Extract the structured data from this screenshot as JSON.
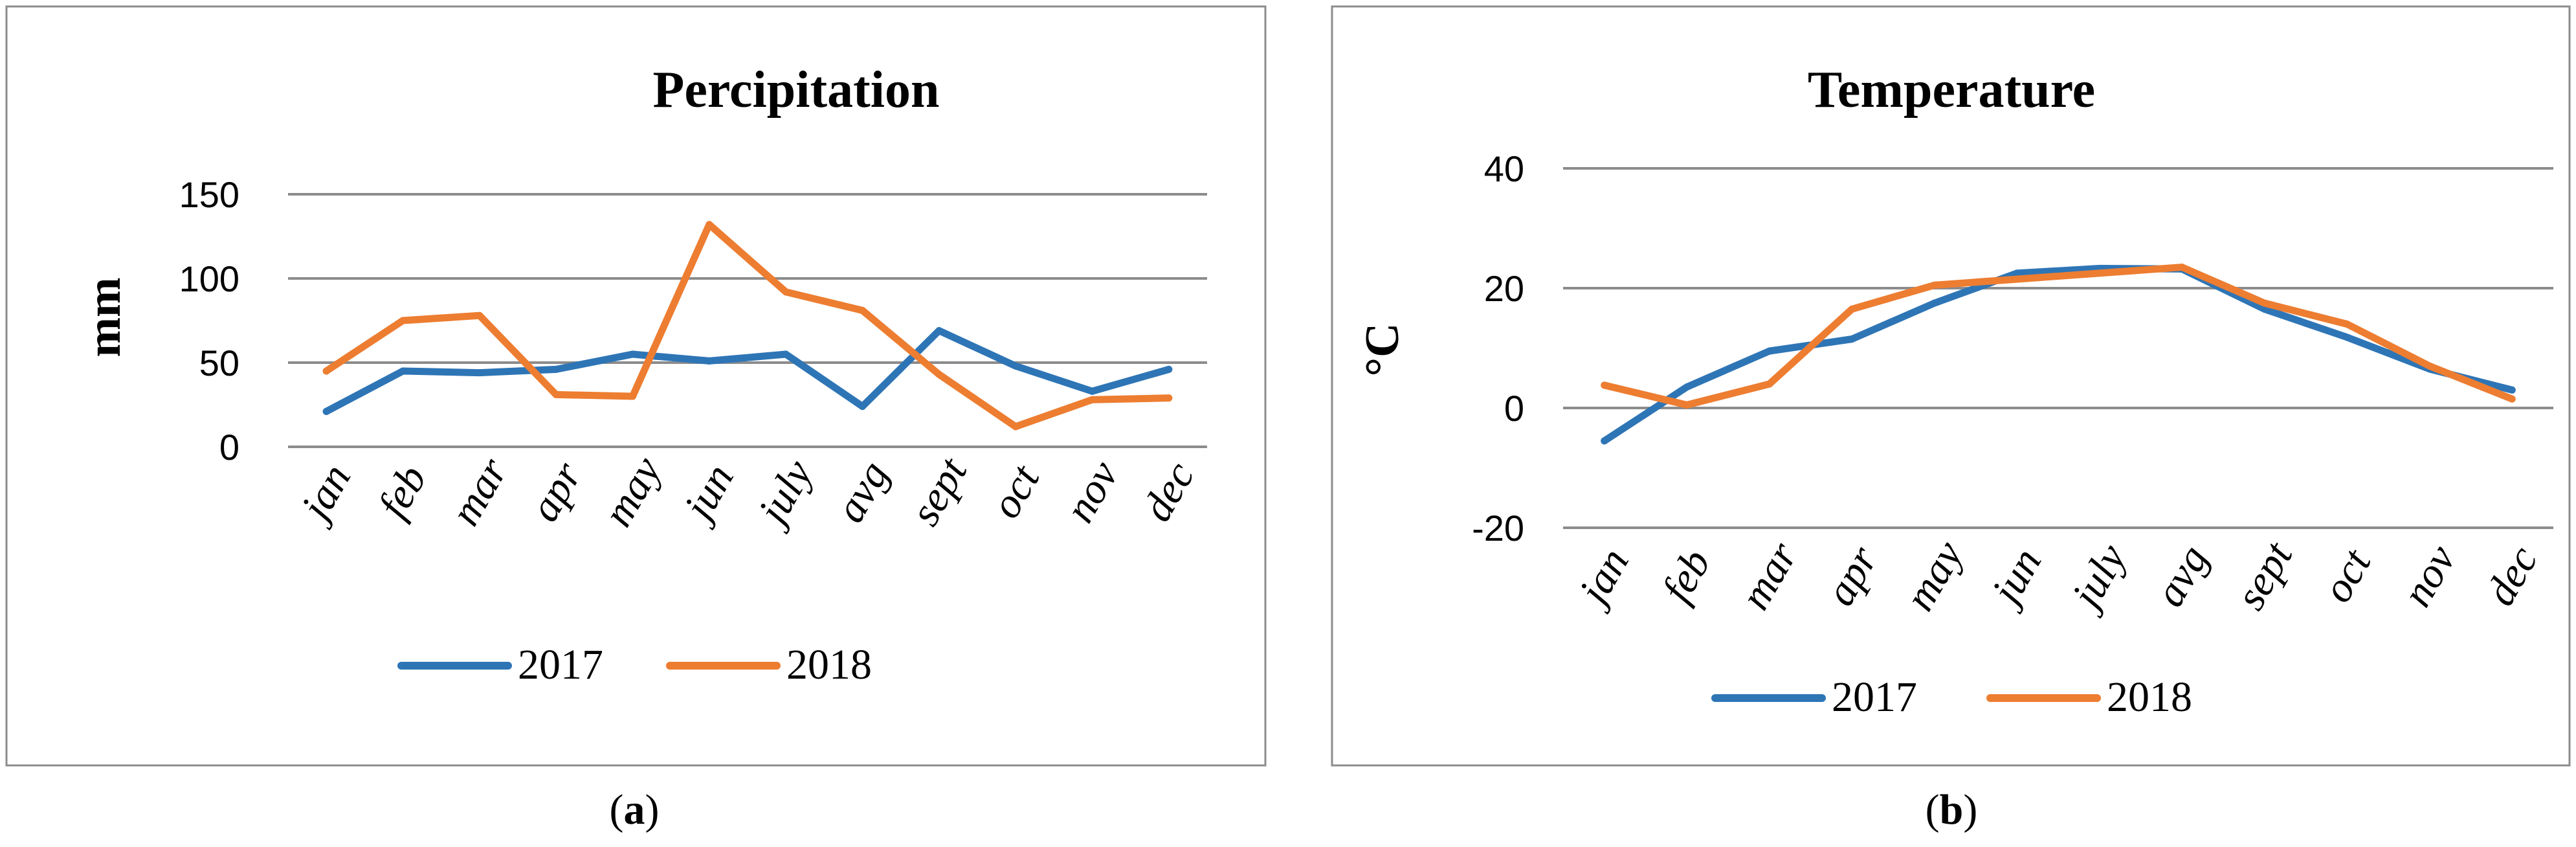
{
  "chart_data": [
    {
      "type": "line",
      "title": "Percipitation",
      "xlabel": "",
      "ylabel": "mm",
      "ylim": [
        0,
        150
      ],
      "yticks": [
        0,
        50,
        100,
        150
      ],
      "grid": true,
      "legend_position": "bottom",
      "categories": [
        "jan",
        "feb",
        "mar",
        "apr",
        "may",
        "jun",
        "july",
        "avg",
        "sept",
        "oct",
        "nov",
        "dec"
      ],
      "series": [
        {
          "name": "2017",
          "color": "#2e75b6",
          "values": [
            21,
            45,
            44,
            46,
            55,
            51,
            55,
            24,
            69,
            48,
            33,
            46
          ]
        },
        {
          "name": "2018",
          "color": "#ed7d31",
          "values": [
            45,
            75,
            78,
            31,
            30,
            132,
            92,
            81,
            43,
            12,
            28,
            29
          ]
        }
      ],
      "caption_prefix": "(",
      "caption_letter": "a",
      "caption_suffix": ")"
    },
    {
      "type": "line",
      "title": "Temperature",
      "xlabel": "",
      "ylabel": "°C",
      "ylim": [
        -20,
        40
      ],
      "yticks": [
        -20,
        0,
        20,
        40
      ],
      "grid": true,
      "legend_position": "bottom",
      "categories": [
        "jan",
        "feb",
        "mar",
        "apr",
        "may",
        "jun",
        "july",
        "avg",
        "sept",
        "oct",
        "nov",
        "dec"
      ],
      "series": [
        {
          "name": "2017",
          "color": "#2e75b6",
          "values": [
            -5.5,
            3.5,
            9.5,
            11.5,
            17.5,
            22.5,
            23.3,
            23.2,
            16.5,
            11.8,
            6.5,
            3
          ]
        },
        {
          "name": "2018",
          "color": "#ed7d31",
          "values": [
            3.8,
            0.5,
            4,
            16.5,
            20.5,
            21.5,
            22.5,
            23.5,
            17.5,
            14,
            7,
            1.5
          ]
        }
      ],
      "caption_prefix": "(",
      "caption_letter": "b",
      "caption_suffix": ")"
    }
  ]
}
